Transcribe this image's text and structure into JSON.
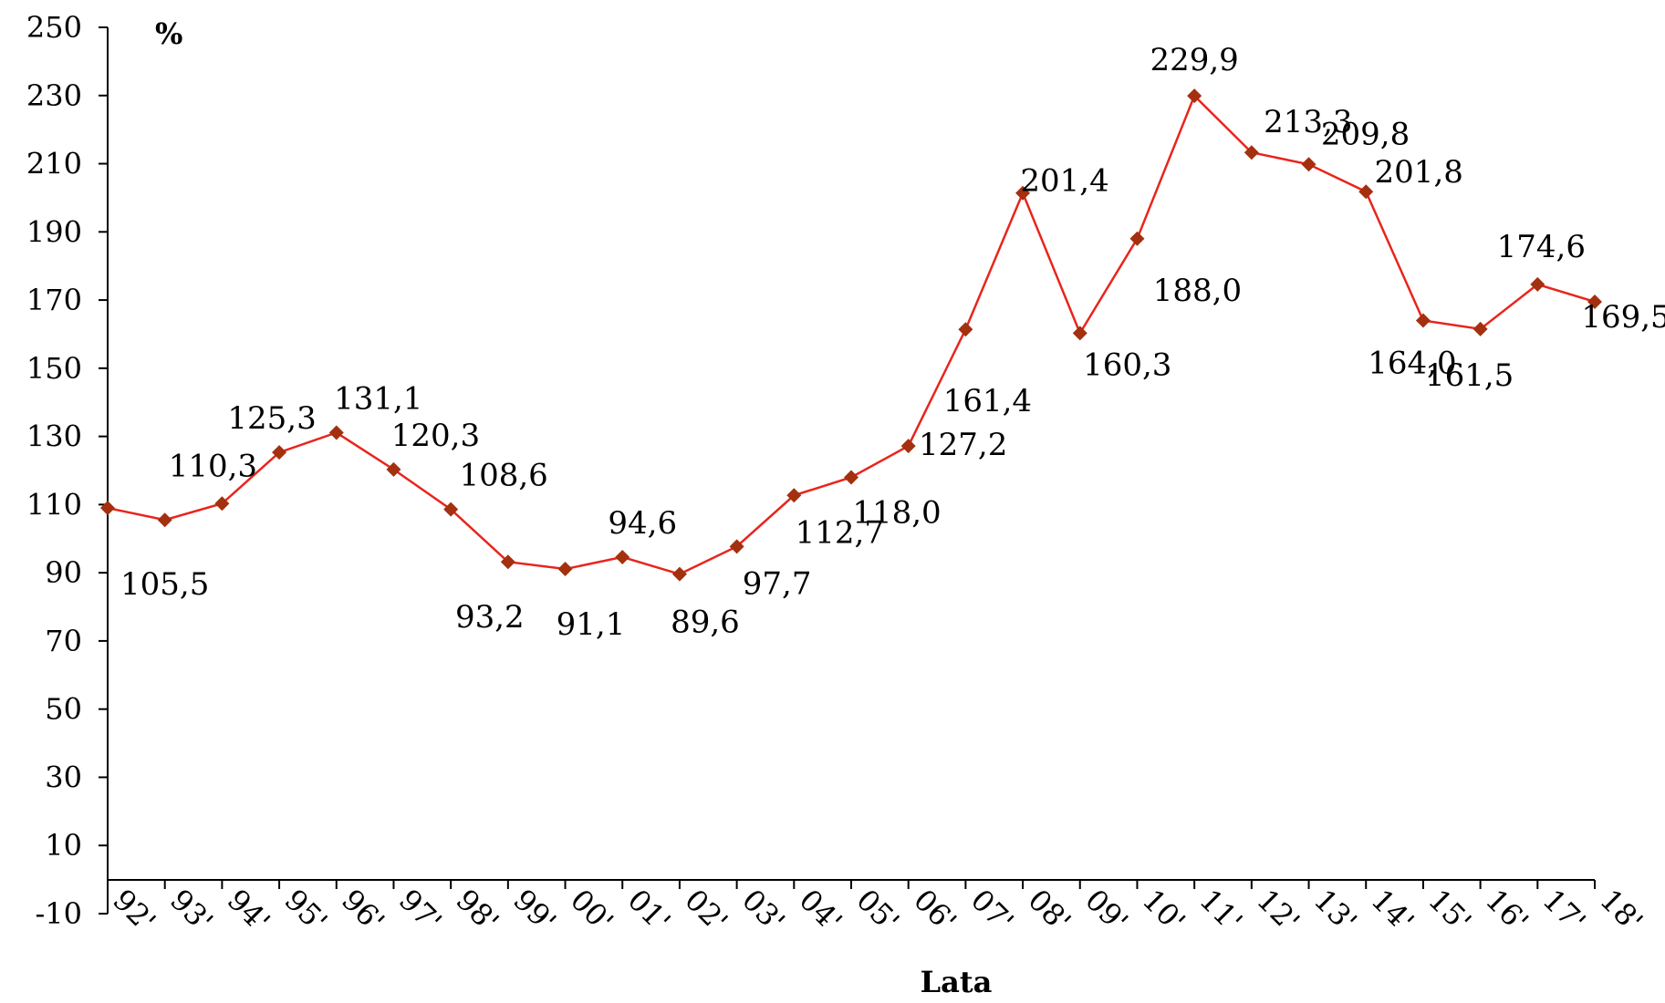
{
  "chart_data": {
    "type": "line",
    "title": "",
    "xlabel": "Lata",
    "ylabel": "%",
    "ylim": [
      -10,
      250
    ],
    "yticks": [
      -10,
      10,
      30,
      50,
      70,
      90,
      110,
      130,
      150,
      170,
      190,
      210,
      230,
      250
    ],
    "categories": [
      "92'",
      "93'",
      "94'",
      "95'",
      "96'",
      "97'",
      "98'",
      "99'",
      "00'",
      "01'",
      "02'",
      "03'",
      "04'",
      "05'",
      "06'",
      "07'",
      "08'",
      "09'",
      "10'",
      "11'",
      "12'",
      "13'",
      "14'",
      "15'",
      "16'",
      "17'",
      "18'"
    ],
    "series": [
      {
        "values": [
          109.0,
          105.5,
          110.3,
          125.3,
          131.1,
          120.3,
          108.6,
          93.2,
          91.1,
          94.6,
          89.6,
          97.7,
          112.7,
          118.0,
          127.2,
          161.4,
          201.4,
          160.3,
          188.0,
          229.9,
          213.3,
          209.8,
          201.8,
          164.0,
          161.5,
          174.6,
          169.5
        ],
        "labels": [
          "",
          "105,5",
          "110,3",
          "125,3",
          "131,1",
          "120,3",
          "108,6",
          "93,2",
          "91,1",
          "94,6",
          "89,6",
          "97,7",
          "112,7",
          "118,0",
          "127,2",
          "161,4",
          "201,4",
          "160,3",
          "188,0",
          "229,9",
          "213,3",
          "209,8",
          "201,8",
          "164,0",
          "161,5",
          "174,6",
          "169,5"
        ],
        "line_color": "#e8251c",
        "marker_color": "#a3300e"
      }
    ],
    "grid": false,
    "legend": "none"
  }
}
